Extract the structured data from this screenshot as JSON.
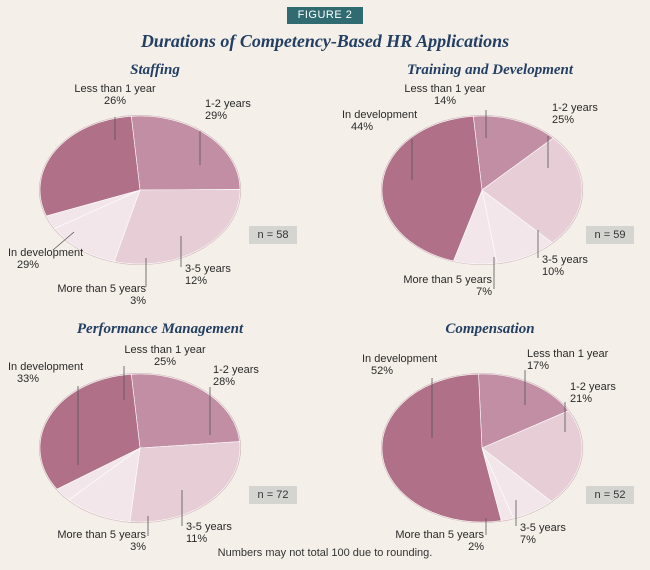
{
  "figure_label": "FIGURE 2",
  "main_title": "Durations of Competency-Based HR Applications",
  "footnote": "Numbers may not total 100 due to rounding.",
  "colors": {
    "darkest": "#b07088",
    "dark": "#c28ea4",
    "mid": "#d4aebe",
    "light": "#e6cdd6",
    "lightest": "#f2e6ea",
    "edge": "#8e5068",
    "label": "#2a2a2a"
  },
  "chart_data": [
    {
      "type": "pie",
      "title": "Staffing",
      "n_label": "n = 58",
      "slices": [
        {
          "label": "Less than 1 year",
          "value_label": "26%",
          "value": 26
        },
        {
          "label": "1-2 years",
          "value_label": "29%",
          "value": 29
        },
        {
          "label": "3-5 years",
          "value_label": "12%",
          "value": 12
        },
        {
          "label": "More than 5 years",
          "value_label": "3%",
          "value": 3
        },
        {
          "label": "In development",
          "value_label": "29%",
          "value": 29
        }
      ]
    },
    {
      "type": "pie",
      "title": "Training and Development",
      "n_label": "n = 59",
      "slices": [
        {
          "label": "Less than 1 year",
          "value_label": "14%",
          "value": 14
        },
        {
          "label": "1-2 years",
          "value_label": "25%",
          "value": 25
        },
        {
          "label": "3-5 years",
          "value_label": "10%",
          "value": 10
        },
        {
          "label": "More than 5 years",
          "value_label": "7%",
          "value": 7
        },
        {
          "label": "In development",
          "value_label": "44%",
          "value": 44
        }
      ]
    },
    {
      "type": "pie",
      "title": "Performance Management",
      "n_label": "n = 72",
      "slices": [
        {
          "label": "Less than 1 year",
          "value_label": "25%",
          "value": 25
        },
        {
          "label": "1-2 years",
          "value_label": "28%",
          "value": 28
        },
        {
          "label": "3-5 years",
          "value_label": "11%",
          "value": 11
        },
        {
          "label": "More than 5 years",
          "value_label": "3%",
          "value": 3
        },
        {
          "label": "In development",
          "value_label": "33%",
          "value": 33
        }
      ]
    },
    {
      "type": "pie",
      "title": "Compensation",
      "n_label": "n = 52",
      "slices": [
        {
          "label": "Less than 1 year",
          "value_label": "17%",
          "value": 17
        },
        {
          "label": "1-2 years",
          "value_label": "21%",
          "value": 21
        },
        {
          "label": "3-5 years",
          "value_label": "7%",
          "value": 7
        },
        {
          "label": "More than 5 years",
          "value_label": "2%",
          "value": 2
        },
        {
          "label": "In development",
          "value_label": "52%",
          "value": 52
        }
      ]
    }
  ]
}
